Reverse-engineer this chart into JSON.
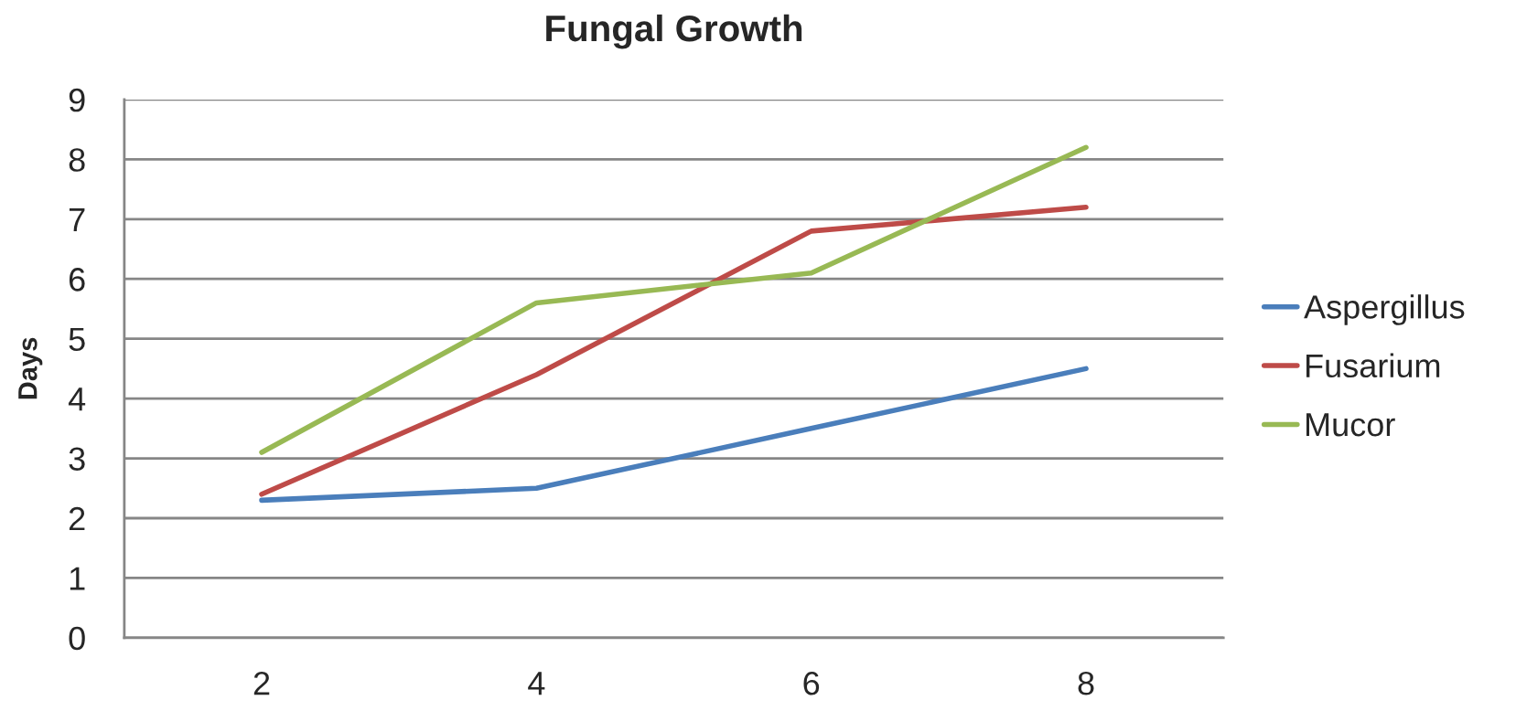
{
  "chart_data": {
    "type": "line",
    "title": "Fungal Growth",
    "ylabel": "Days",
    "categories": [
      "2",
      "4",
      "6",
      "8"
    ],
    "series": [
      {
        "name": "Aspergillus",
        "color": "#4a7ebb",
        "values": [
          2.3,
          2.5,
          3.5,
          4.5
        ]
      },
      {
        "name": "Fusarium",
        "color": "#be4b48",
        "values": [
          2.4,
          4.4,
          6.8,
          7.2
        ]
      },
      {
        "name": "Mucor",
        "color": "#98b954",
        "values": [
          3.1,
          5.6,
          6.1,
          8.2
        ]
      }
    ],
    "ylim": [
      0,
      9
    ],
    "yticks": [
      0,
      1,
      2,
      3,
      4,
      5,
      6,
      7,
      8,
      9
    ],
    "grid": "y",
    "legend": "right",
    "line_style": "solid"
  }
}
